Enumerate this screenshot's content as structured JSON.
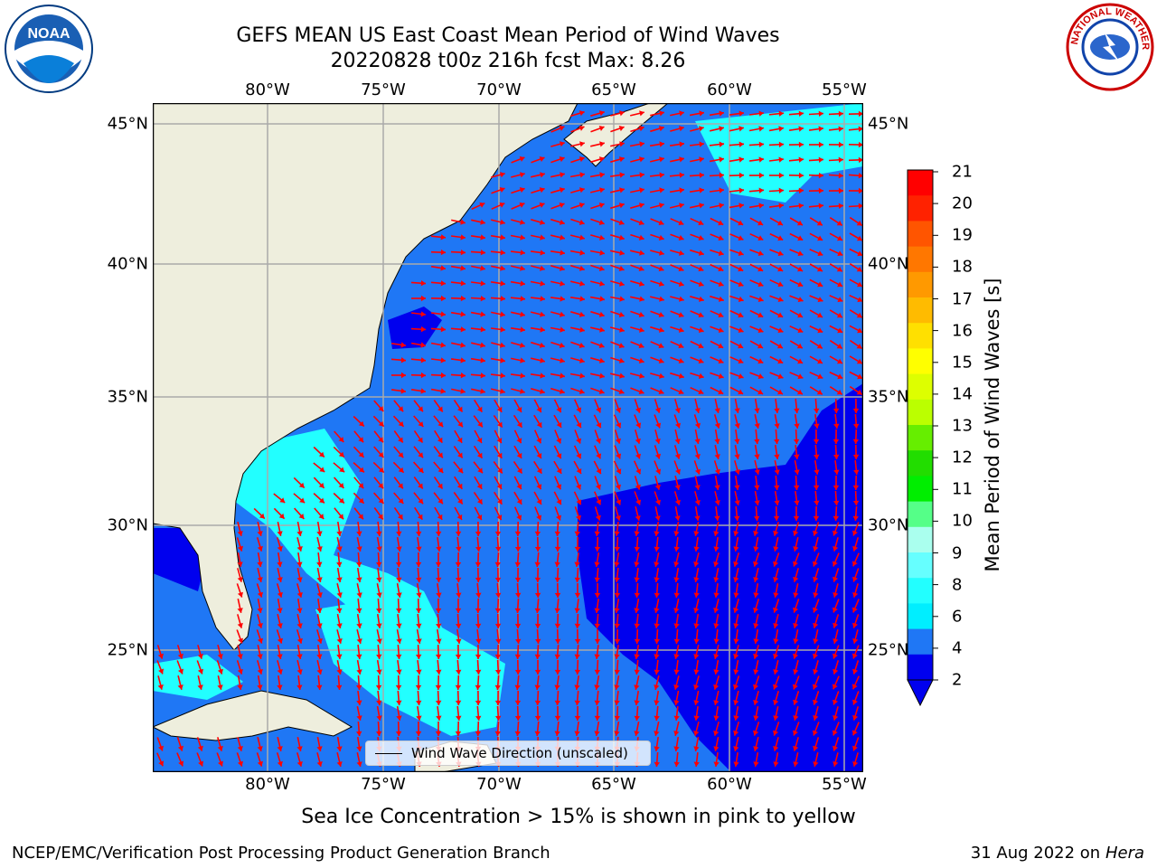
{
  "title": {
    "line1": "GEFS MEAN US East Coast Mean Period of Wind Waves",
    "line2": "20220828 t00z 216h fcst   Max: 8.26"
  },
  "map": {
    "lon_ticks": [
      "80°W",
      "75°W",
      "70°W",
      "65°W",
      "60°W",
      "55°W"
    ],
    "lat_ticks": [
      "45°N",
      "40°N",
      "35°N",
      "30°N",
      "25°N"
    ],
    "extent": {
      "lon": [
        -85,
        -54.5
      ],
      "lat": [
        20.3,
        46.2
      ]
    },
    "grid": true,
    "colors": {
      "land": "#eeeedd",
      "deep_blue": "#0000ee",
      "mid_blue": "#1f77f5",
      "cyan": "#22ffff",
      "arrow": "#ff0000",
      "grid": "#aaaaaa"
    },
    "legend_label": "Wind Wave Direction (unscaled)"
  },
  "colorbar": {
    "label": "Mean Period of Wind Waves [s]",
    "ticks": [
      "21",
      "20",
      "19",
      "18",
      "17",
      "16",
      "15",
      "14",
      "13",
      "12",
      "11",
      "10",
      "9",
      "8",
      "6",
      "4",
      "2"
    ],
    "colors": [
      "#ff0000",
      "#ff2200",
      "#ff5500",
      "#ff7700",
      "#ff9900",
      "#ffbb00",
      "#ffe000",
      "#ffff00",
      "#ddff00",
      "#bbff00",
      "#66ee00",
      "#22dd00",
      "#00ee00",
      "#55ff88",
      "#aaffee",
      "#66ffff",
      "#22ffff",
      "#00eeff",
      "#1f77f5",
      "#0000ee"
    ]
  },
  "logos": {
    "left": "NOAA",
    "right_text": "NATIONAL WEATHER SERVICE"
  },
  "footer": {
    "subtitle": "Sea Ice Concentration > 15% is shown in pink to yellow",
    "left": "NCEP/EMC/Verification Post Processing Product Generation Branch",
    "right_date": "31 Aug 2022 on",
    "right_machine": "Hera"
  }
}
